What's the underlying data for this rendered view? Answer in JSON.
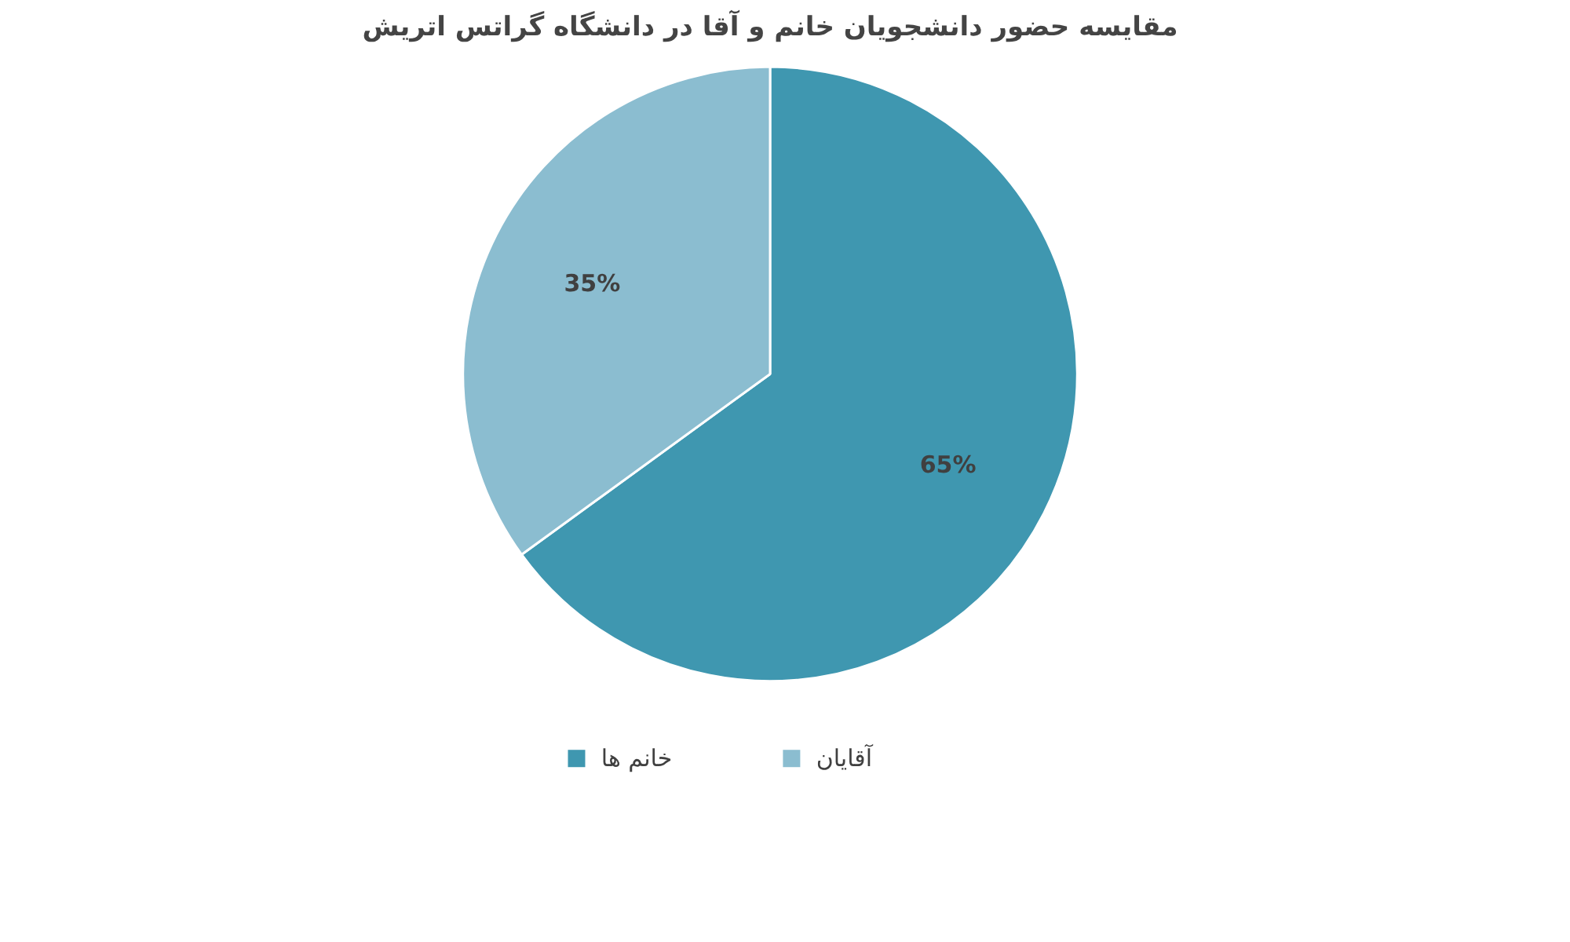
{
  "chart_data": {
    "type": "pie",
    "title": "مقایسه حضور دانشجویان خانم و آقا در دانشگاه گراتس اتریش",
    "categories": [
      "خانم ها",
      "آقایان"
    ],
    "values": [
      65,
      35
    ],
    "colors": [
      "#3f97b0",
      "#8bbdd0"
    ],
    "value_labels": [
      "65%",
      "35%"
    ],
    "legend": "bottom"
  }
}
